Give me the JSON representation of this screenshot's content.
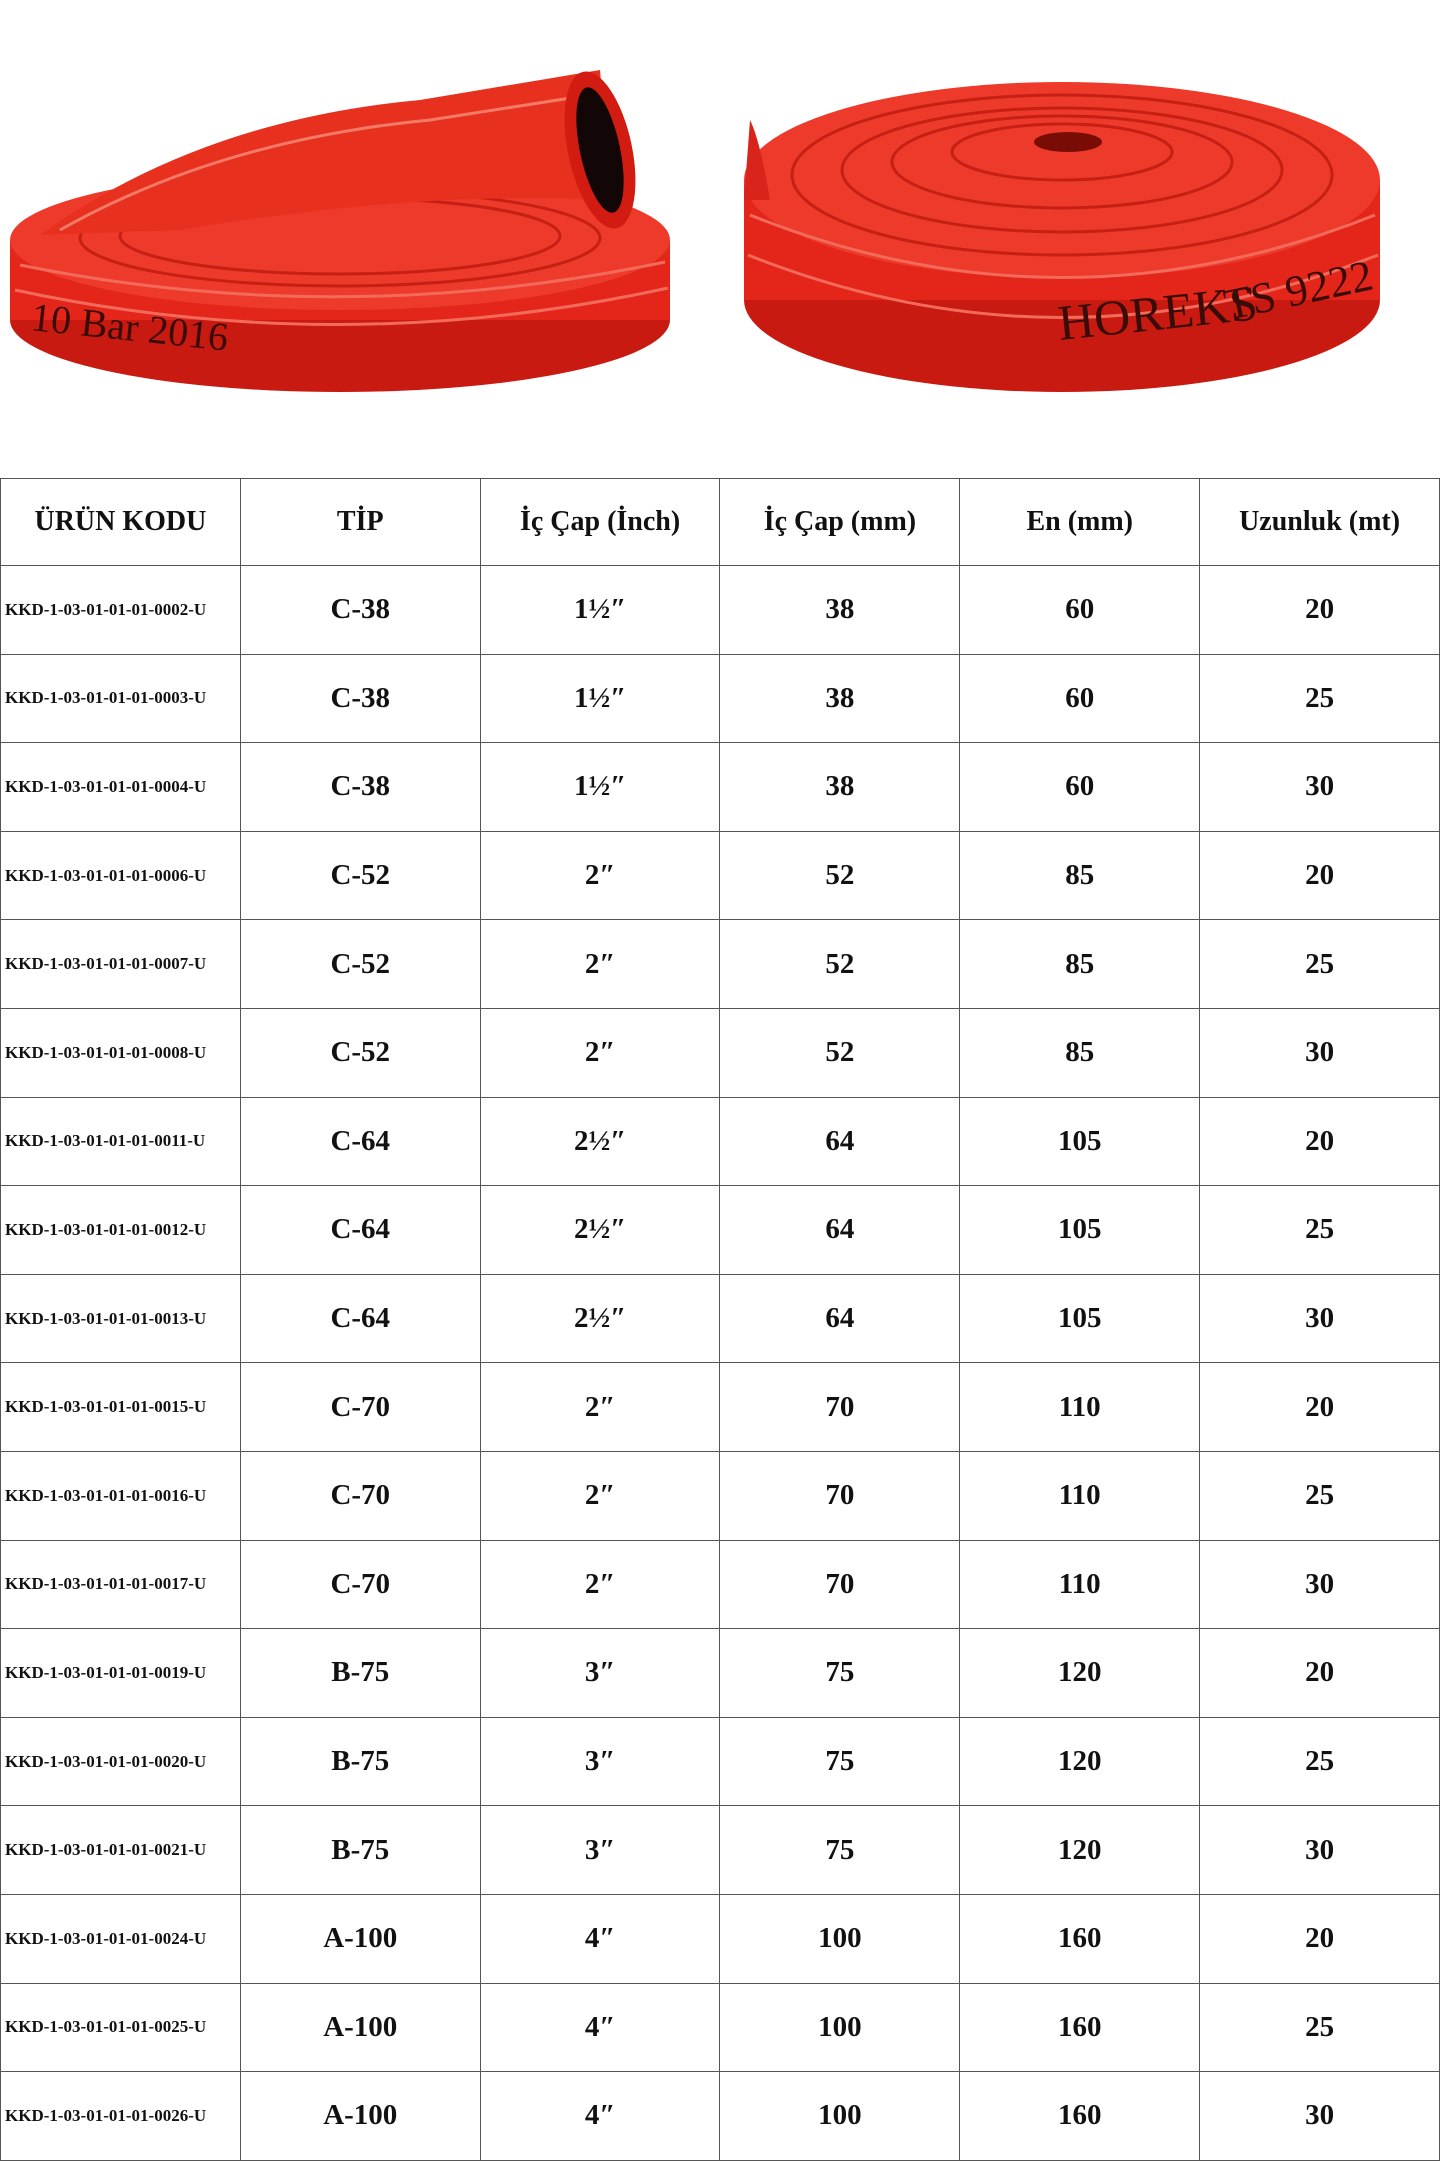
{
  "images": [
    {
      "text": "10 Bar 2016"
    },
    {
      "brand": "HOREKS",
      "standard": "TS 9222"
    }
  ],
  "table": {
    "header": [
      "ÜRÜN KODU",
      "TİP",
      "İç Çap (İnch)",
      "İç Çap (mm)",
      "En (mm)",
      "Uzunluk (mt)"
    ],
    "rows": [
      [
        "KKD-1-03-01-01-01-0002-U",
        "C-38",
        "1½″",
        38,
        60,
        20
      ],
      [
        "KKD-1-03-01-01-01-0003-U",
        "C-38",
        "1½″",
        38,
        60,
        25
      ],
      [
        "KKD-1-03-01-01-01-0004-U",
        "C-38",
        "1½″",
        38,
        60,
        30
      ],
      [
        "KKD-1-03-01-01-01-0006-U",
        "C-52",
        "2″",
        52,
        85,
        20
      ],
      [
        "KKD-1-03-01-01-01-0007-U",
        "C-52",
        "2″",
        52,
        85,
        25
      ],
      [
        "KKD-1-03-01-01-01-0008-U",
        "C-52",
        "2″",
        52,
        85,
        30
      ],
      [
        "KKD-1-03-01-01-01-0011-U",
        "C-64",
        "2½″",
        64,
        105,
        20
      ],
      [
        "KKD-1-03-01-01-01-0012-U",
        "C-64",
        "2½″",
        64,
        105,
        25
      ],
      [
        "KKD-1-03-01-01-01-0013-U",
        "C-64",
        "2½″",
        64,
        105,
        30
      ],
      [
        "KKD-1-03-01-01-01-0015-U",
        "C-70",
        "2″",
        70,
        110,
        20
      ],
      [
        "KKD-1-03-01-01-01-0016-U",
        "C-70",
        "2″",
        70,
        110,
        25
      ],
      [
        "KKD-1-03-01-01-01-0017-U",
        "C-70",
        "2″",
        70,
        110,
        30
      ],
      [
        "KKD-1-03-01-01-01-0019-U",
        "B-75",
        "3″",
        75,
        120,
        20
      ],
      [
        "KKD-1-03-01-01-01-0020-U",
        "B-75",
        "3″",
        75,
        120,
        25
      ],
      [
        "KKD-1-03-01-01-01-0021-U",
        "B-75",
        "3″",
        75,
        120,
        30
      ],
      [
        "KKD-1-03-01-01-01-0024-U",
        "A-100",
        "4″",
        100,
        160,
        20
      ],
      [
        "KKD-1-03-01-01-01-0025-U",
        "A-100",
        "4″",
        100,
        160,
        25
      ],
      [
        "KKD-1-03-01-01-01-0026-U",
        "A-100",
        "4″",
        100,
        160,
        30
      ]
    ]
  }
}
